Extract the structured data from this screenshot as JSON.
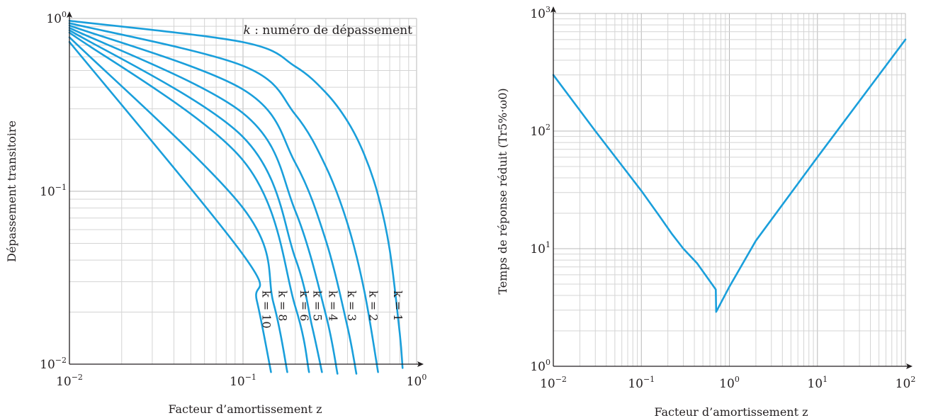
{
  "chart_data": [
    {
      "type": "line",
      "xlabel": "Facteur d’amortissement z",
      "ylabel": "Dépassement transitoire",
      "x_scale": "log",
      "y_scale": "log",
      "xlim": [
        0.01,
        1
      ],
      "ylim": [
        0.01,
        1
      ],
      "grid": true,
      "x_tick_labels": [
        {
          "base": "10",
          "exp": "−2"
        },
        {
          "base": "10",
          "exp": "−1"
        },
        {
          "base": "10",
          "exp": "0"
        }
      ],
      "y_tick_labels": [
        {
          "base": "10",
          "exp": "−2"
        },
        {
          "base": "10",
          "exp": "−1"
        },
        {
          "base": "10",
          "exp": "0"
        }
      ],
      "annotation": {
        "var": "k",
        "text": " : numéro de dépassement"
      },
      "series": [
        {
          "k": 1,
          "label": "k = 1",
          "points": [
            [
              0.01,
              0.969
            ],
            [
              0.1,
              0.729
            ],
            [
              0.2,
              0.527
            ],
            [
              0.3,
              0.372
            ],
            [
              0.4,
              0.254
            ],
            [
              0.5,
              0.163
            ],
            [
              0.6,
              0.095
            ],
            [
              0.7,
              0.046
            ],
            [
              0.8,
              0.015
            ],
            [
              0.83,
              0.0095
            ]
          ]
        },
        {
          "k": 2,
          "label": "k = 2",
          "points": [
            [
              0.01,
              0.939
            ],
            [
              0.1,
              0.532
            ],
            [
              0.2,
              0.278
            ],
            [
              0.3,
              0.139
            ],
            [
              0.4,
              0.065
            ],
            [
              0.5,
              0.0265
            ],
            [
              0.6,
              0.009
            ]
          ]
        },
        {
          "k": 3,
          "label": "k = 3",
          "points": [
            [
              0.01,
              0.91
            ],
            [
              0.1,
              0.388
            ],
            [
              0.2,
              0.146
            ],
            [
              0.3,
              0.052
            ],
            [
              0.4,
              0.0164
            ],
            [
              0.45,
              0.0088
            ]
          ]
        },
        {
          "k": 4,
          "label": "k = 4",
          "points": [
            [
              0.01,
              0.882
            ],
            [
              0.1,
              0.283
            ],
            [
              0.2,
              0.077
            ],
            [
              0.3,
              0.0193
            ],
            [
              0.35,
              0.0088
            ]
          ]
        },
        {
          "k": 5,
          "label": "k = 5",
          "points": [
            [
              0.01,
              0.855
            ],
            [
              0.1,
              0.206
            ],
            [
              0.2,
              0.041
            ],
            [
              0.25,
              0.0165
            ],
            [
              0.285,
              0.009
            ]
          ]
        },
        {
          "k": 6,
          "label": "k = 6",
          "points": [
            [
              0.01,
              0.828
            ],
            [
              0.1,
              0.151
            ],
            [
              0.2,
              0.0215
            ],
            [
              0.24,
              0.009
            ]
          ]
        },
        {
          "k": 8,
          "label": "k = 8",
          "points": [
            [
              0.01,
              0.778
            ],
            [
              0.1,
              0.08
            ],
            [
              0.15,
              0.0225
            ],
            [
              0.18,
              0.009
            ]
          ]
        },
        {
          "k": 10,
          "label": "k = 10",
          "points": [
            [
              0.01,
              0.731
            ],
            [
              0.1,
              0.043
            ],
            [
              0.12,
              0.0234
            ],
            [
              0.145,
              0.009
            ]
          ]
        }
      ]
    },
    {
      "type": "line",
      "xlabel": "Facteur d’amortissement z",
      "ylabel": "Temps de réponse réduit (Tr5%·ω0)",
      "x_scale": "log",
      "y_scale": "log",
      "xlim": [
        0.01,
        100
      ],
      "ylim": [
        1,
        1000
      ],
      "grid": true,
      "x_tick_labels": [
        {
          "base": "10",
          "exp": "−2"
        },
        {
          "base": "10",
          "exp": "−1"
        },
        {
          "base": "10",
          "exp": "0"
        },
        {
          "base": "10",
          "exp": "1"
        },
        {
          "base": "10",
          "exp": "2"
        }
      ],
      "y_tick_labels": [
        {
          "base": "10",
          "exp": "0"
        },
        {
          "base": "10",
          "exp": "1"
        },
        {
          "base": "10",
          "exp": "2"
        },
        {
          "base": "10",
          "exp": "3"
        }
      ],
      "series": [
        {
          "points": [
            [
              0.01,
              300
            ],
            [
              0.03,
              100
            ],
            [
              0.1,
              31
            ],
            [
              0.16,
              19
            ],
            [
              0.22,
              13.5
            ],
            [
              0.3,
              10
            ],
            [
              0.43,
              7.5
            ],
            [
              0.7,
              4.5
            ],
            [
              0.707,
              2.9
            ],
            [
              1,
              4.75
            ],
            [
              2,
              11.7
            ],
            [
              10,
              60
            ],
            [
              100,
              600
            ]
          ]
        }
      ]
    }
  ]
}
